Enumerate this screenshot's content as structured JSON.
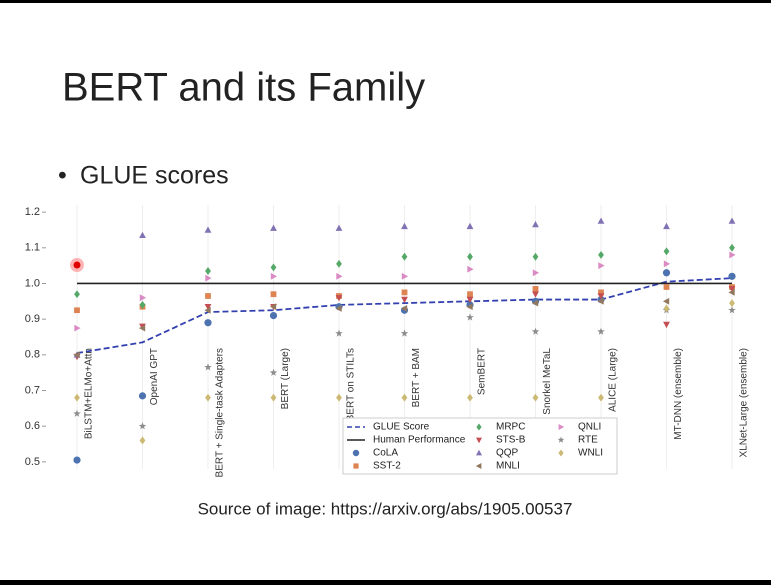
{
  "slide": {
    "title": "BERT and its Family",
    "bullet": "GLUE scores",
    "source": "Source of image: https://arxiv.org/abs/1905.00537"
  },
  "chart_data": {
    "type": "scatter",
    "categories": [
      "BiLSTM+ELMo+Attn",
      "OpenAI GPT",
      "BERT + Single-task Adapters",
      "BERT (Large)",
      "BERT on STILTs",
      "BERT + BAM",
      "SemBERT",
      "Snorkel MeTaL",
      "ALICE (Large)",
      "MT-DNN (ensemble)",
      "XLNet-Large (ensemble)"
    ],
    "ylim": [
      0.48,
      1.22
    ],
    "yticks": [
      0.5,
      0.6,
      0.7,
      0.8,
      0.9,
      {
        "value": 1,
        "label": "1.0"
      },
      1.1,
      1.2
    ],
    "grid": "x",
    "legend": "lower center",
    "series": [
      {
        "name": "GLUE Score",
        "type": "line",
        "dash": true,
        "color": "#3340b0",
        "values": [
          0.805,
          0.835,
          0.92,
          0.925,
          0.94,
          0.945,
          0.95,
          0.955,
          0.955,
          1.005,
          1.015
        ]
      },
      {
        "name": "Human Performance",
        "type": "line",
        "dash": false,
        "color": "#222222",
        "values": [
          1,
          1,
          1,
          1,
          1,
          1,
          1,
          1,
          1,
          1,
          1
        ]
      },
      {
        "name": "CoLA",
        "marker": "circle",
        "color": "#4c72b0",
        "values": [
          0.505,
          0.685,
          0.89,
          0.91,
          0.935,
          0.925,
          0.94,
          0.95,
          0.955,
          1.03,
          1.02
        ]
      },
      {
        "name": "SST-2",
        "marker": "square",
        "color": "#dd8452",
        "values": [
          0.925,
          0.935,
          0.965,
          0.97,
          0.965,
          0.975,
          0.97,
          0.985,
          0.975,
          0.99,
          0.99
        ]
      },
      {
        "name": "MRPC",
        "marker": "diamond",
        "color": "#55a868",
        "values": [
          0.97,
          0.94,
          1.035,
          1.045,
          1.055,
          1.075,
          1.075,
          1.075,
          1.08,
          1.09,
          1.1
        ]
      },
      {
        "name": "STS-B",
        "marker": "triangle-down",
        "color": "#c44e52",
        "values": [
          0.795,
          0.88,
          0.935,
          0.935,
          0.96,
          0.955,
          0.955,
          0.97,
          0.965,
          0.885,
          0.985
        ]
      },
      {
        "name": "QQP",
        "marker": "triangle-up",
        "color": "#8172b3",
        "values": [
          0.8,
          1.135,
          1.15,
          1.155,
          1.155,
          1.16,
          1.16,
          1.165,
          1.175,
          1.16,
          1.175
        ]
      },
      {
        "name": "MNLI",
        "marker": "triangle-left",
        "color": "#937860",
        "values": [
          0.8,
          0.875,
          0.925,
          0.935,
          0.93,
          0.93,
          0.935,
          0.945,
          0.95,
          0.95,
          0.975
        ]
      },
      {
        "name": "QNLI",
        "marker": "triangle-right",
        "color": "#da8bc3",
        "values": [
          0.875,
          0.96,
          1.015,
          1.02,
          1.02,
          1.02,
          1.04,
          1.03,
          1.05,
          1.055,
          1.08
        ]
      },
      {
        "name": "RTE",
        "marker": "star",
        "color": "#8c8c8c",
        "values": [
          0.635,
          0.6,
          0.765,
          0.75,
          0.86,
          0.86,
          0.905,
          0.865,
          0.865,
          0.925,
          0.925
        ]
      },
      {
        "name": "WNLI",
        "marker": "diamond",
        "color": "#ccb974",
        "values": [
          0.68,
          0.56,
          0.68,
          0.68,
          0.68,
          0.68,
          0.68,
          0.68,
          0.68,
          0.93,
          0.945
        ]
      }
    ]
  }
}
